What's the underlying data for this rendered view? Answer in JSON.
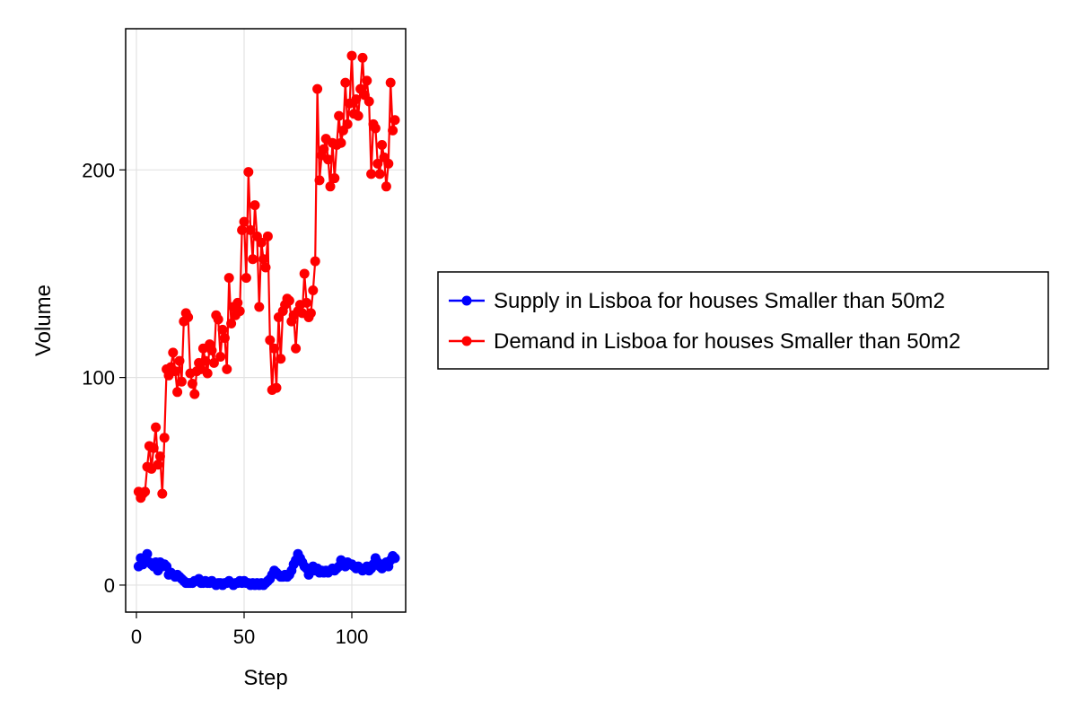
{
  "chart_data": {
    "type": "line",
    "title": "",
    "xlabel": "Step",
    "ylabel": "Volume",
    "xlim": [
      -5,
      125
    ],
    "ylim": [
      -13,
      268
    ],
    "xticks": [
      0,
      50,
      100
    ],
    "yticks": [
      0,
      100,
      200
    ],
    "grid": true,
    "legend_position": "right",
    "series": [
      {
        "name": "Supply in Lisboa for houses Smaller than 50m2",
        "color": "#0000ff",
        "marker": "circle",
        "x": [
          1,
          2,
          3,
          4,
          5,
          6,
          7,
          8,
          9,
          10,
          11,
          12,
          13,
          14,
          15,
          16,
          17,
          18,
          19,
          20,
          21,
          22,
          23,
          24,
          25,
          26,
          27,
          28,
          29,
          30,
          31,
          32,
          33,
          34,
          35,
          36,
          37,
          38,
          39,
          40,
          41,
          42,
          43,
          44,
          45,
          46,
          47,
          48,
          49,
          50,
          51,
          52,
          53,
          54,
          55,
          56,
          57,
          58,
          59,
          60,
          61,
          62,
          63,
          64,
          65,
          66,
          67,
          68,
          69,
          70,
          71,
          72,
          73,
          74,
          75,
          76,
          77,
          78,
          79,
          80,
          81,
          82,
          83,
          84,
          85,
          86,
          87,
          88,
          89,
          90,
          91,
          92,
          93,
          94,
          95,
          96,
          97,
          98,
          99,
          100,
          101,
          102,
          103,
          104,
          105,
          106,
          107,
          108,
          109,
          110,
          111,
          112,
          113,
          114,
          115,
          116,
          117,
          118,
          119,
          120
        ],
        "y": [
          9,
          13,
          10,
          12,
          15,
          11,
          10,
          9,
          11,
          7,
          11,
          9,
          10,
          9,
          5,
          6,
          5,
          4,
          5,
          4,
          3,
          2,
          1,
          1,
          1,
          1,
          2,
          2,
          3,
          1,
          1,
          2,
          1,
          1,
          2,
          1,
          0,
          1,
          1,
          0,
          1,
          1,
          2,
          1,
          0,
          1,
          1,
          2,
          1,
          2,
          1,
          1,
          0,
          1,
          0,
          1,
          0,
          1,
          0,
          1,
          2,
          3,
          5,
          7,
          6,
          5,
          4,
          4,
          5,
          4,
          5,
          7,
          10,
          12,
          15,
          13,
          11,
          9,
          8,
          5,
          8,
          9,
          7,
          8,
          6,
          7,
          6,
          7,
          6,
          7,
          8,
          7,
          8,
          9,
          12,
          10,
          9,
          11,
          10,
          10,
          9,
          8,
          9,
          8,
          7,
          8,
          9,
          7,
          8,
          10,
          13,
          11,
          9,
          8,
          10,
          11,
          9,
          12,
          14,
          13
        ]
      },
      {
        "name": "Demand in Lisboa for houses Smaller than 50m2",
        "color": "#ff0000",
        "marker": "circle",
        "x": [
          1,
          2,
          3,
          4,
          5,
          6,
          7,
          8,
          9,
          10,
          11,
          12,
          13,
          14,
          15,
          16,
          17,
          18,
          19,
          20,
          21,
          22,
          23,
          24,
          25,
          26,
          27,
          28,
          29,
          30,
          31,
          32,
          33,
          34,
          35,
          36,
          37,
          38,
          39,
          40,
          41,
          42,
          43,
          44,
          45,
          46,
          47,
          48,
          49,
          50,
          51,
          52,
          53,
          54,
          55,
          56,
          57,
          58,
          59,
          60,
          61,
          62,
          63,
          64,
          65,
          66,
          67,
          68,
          69,
          70,
          71,
          72,
          73,
          74,
          75,
          76,
          77,
          78,
          79,
          80,
          81,
          82,
          83,
          84,
          85,
          86,
          87,
          88,
          89,
          90,
          91,
          92,
          93,
          94,
          95,
          96,
          97,
          98,
          99,
          100,
          101,
          102,
          103,
          104,
          105,
          106,
          107,
          108,
          109,
          110,
          111,
          112,
          113,
          114,
          115,
          116,
          117,
          118,
          119,
          120
        ],
        "y": [
          45,
          42,
          44,
          45,
          57,
          67,
          56,
          66,
          76,
          58,
          62,
          44,
          71,
          104,
          101,
          105,
          112,
          103,
          93,
          108,
          98,
          127,
          131,
          129,
          102,
          97,
          92,
          103,
          107,
          104,
          114,
          108,
          102,
          116,
          113,
          107,
          130,
          128,
          110,
          123,
          119,
          104,
          148,
          126,
          134,
          130,
          136,
          132,
          171,
          175,
          148,
          199,
          171,
          157,
          183,
          168,
          134,
          165,
          157,
          153,
          168,
          118,
          94,
          114,
          95,
          129,
          109,
          132,
          135,
          138,
          137,
          127,
          130,
          114,
          132,
          135,
          131,
          150,
          136,
          129,
          131,
          142,
          156,
          239,
          195,
          207,
          210,
          215,
          205,
          192,
          213,
          196,
          212,
          226,
          213,
          219,
          242,
          222,
          232,
          255,
          227,
          234,
          226,
          239,
          254,
          236,
          243,
          233,
          198,
          222,
          220,
          203,
          198,
          212,
          206,
          192,
          203,
          242,
          219,
          224
        ]
      }
    ]
  }
}
